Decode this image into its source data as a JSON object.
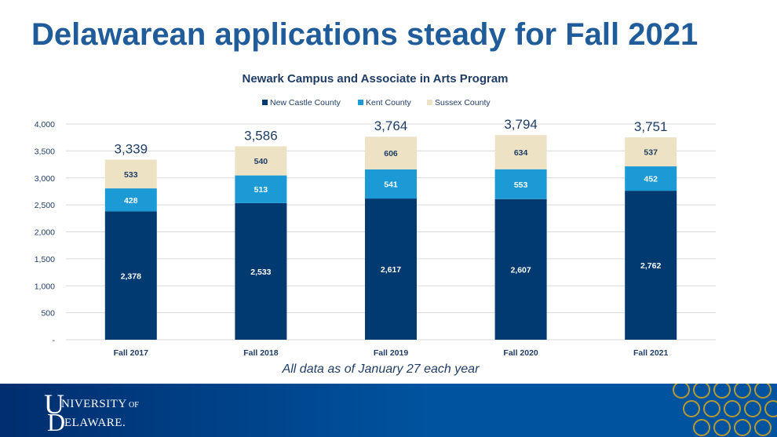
{
  "slide": {
    "title": "Delawarean applications steady for Fall 2021",
    "footnote": "All data as of January 27 each year",
    "logo_text": "UNIVERSITY OF DELAWARE",
    "colors": {
      "title": "#1f5c99",
      "new_castle": "#003a70",
      "kent": "#1b9ad6",
      "sussex": "#ede3c4",
      "footer": "#00539f"
    }
  },
  "chart_data": {
    "type": "bar",
    "stacked": true,
    "title": "Newark Campus and Associate in Arts Program",
    "categories": [
      "Fall 2017",
      "Fall 2018",
      "Fall 2019",
      "Fall 2020",
      "Fall 2021"
    ],
    "series": [
      {
        "name": "New Castle County",
        "values": [
          2378,
          2533,
          2617,
          2607,
          2762
        ],
        "labels": [
          "2,378",
          "2,533",
          "2,617",
          "2,607",
          "2,762"
        ],
        "color": "#003a70",
        "label_color": "#ffffff"
      },
      {
        "name": "Kent County",
        "values": [
          428,
          513,
          541,
          553,
          452
        ],
        "labels": [
          "428",
          "513",
          "541",
          "553",
          "452"
        ],
        "color": "#1b9ad6",
        "label_color": "#ffffff"
      },
      {
        "name": "Sussex County",
        "values": [
          533,
          540,
          606,
          634,
          537
        ],
        "labels": [
          "533",
          "540",
          "606",
          "634",
          "537"
        ],
        "color": "#ede3c4",
        "label_color": "#1f3d66"
      }
    ],
    "totals": [
      "3,339",
      "3,586",
      "3,764",
      "3,794",
      "3,751"
    ],
    "ylim": [
      0,
      4000
    ],
    "yticks": [
      0,
      500,
      1000,
      1500,
      2000,
      2500,
      3000,
      3500,
      4000
    ],
    "ytick_labels": [
      "-",
      "500",
      "1,000",
      "1,500",
      "2,000",
      "2,500",
      "3,000",
      "3,500",
      "4,000"
    ],
    "grid": true,
    "legend_position": "top"
  }
}
